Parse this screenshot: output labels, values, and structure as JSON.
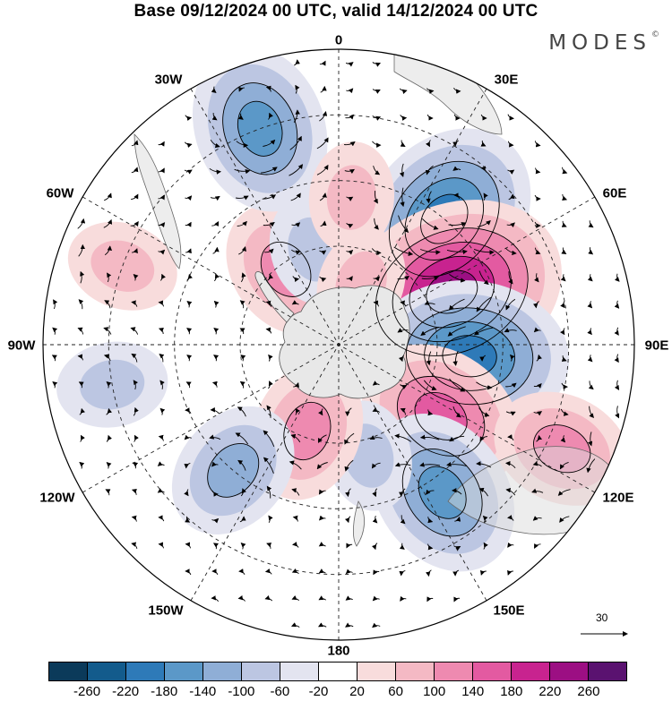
{
  "title": "Base 09/12/2024 00 UTC, valid 14/12/2024 00 UTC",
  "brand": "MODES",
  "brand_mark": "©",
  "longitude_labels": {
    "lon_0": "0",
    "lon_30e": "30E",
    "lon_60e": "60E",
    "lon_90e": "90E",
    "lon_120e": "120E",
    "lon_150e": "150E",
    "lon_180": "180",
    "lon_150w": "150W",
    "lon_120w": "120W",
    "lon_90w": "90W",
    "lon_60w": "60W",
    "lon_30w": "30W"
  },
  "reference_vector_label": "30",
  "colorbar": {
    "colors": [
      "#0b3a5a",
      "#135b8c",
      "#2e7ab8",
      "#5b98c8",
      "#8faed6",
      "#bcc6e2",
      "#e3e4f0",
      "#ffffff",
      "#f8dcdc",
      "#f4b9c4",
      "#ee8ab0",
      "#e35aa1",
      "#c8238f",
      "#9c0f83",
      "#5a1270"
    ],
    "ticks": [
      "-260",
      "-220",
      "-180",
      "-140",
      "-100",
      "-60",
      "-20",
      "20",
      "60",
      "100",
      "140",
      "180",
      "220",
      "260"
    ]
  },
  "anomaly_centers": [
    {
      "lon": 40,
      "colat": 50,
      "value": -180
    },
    {
      "lon": 65,
      "colat": 38,
      "value": 220
    },
    {
      "lon": 95,
      "colat": 40,
      "value": -200
    },
    {
      "lon": 125,
      "colat": 38,
      "value": 150
    },
    {
      "lon": 145,
      "colat": 55,
      "value": -140
    },
    {
      "lon": 165,
      "colat": 35,
      "value": -80
    },
    {
      "lon": -160,
      "colat": 28,
      "value": 110
    },
    {
      "lon": -140,
      "colat": 50,
      "value": -120
    },
    {
      "lon": -35,
      "colat": 28,
      "value": 120
    },
    {
      "lon": -15,
      "colat": 30,
      "value": -80
    },
    {
      "lon": -20,
      "colat": 70,
      "value": -140
    },
    {
      "lon": 5,
      "colat": 45,
      "value": 80
    },
    {
      "lon": 20,
      "colat": 20,
      "value": 60
    },
    {
      "lon": -70,
      "colat": 70,
      "value": 60
    },
    {
      "lon": -100,
      "colat": 70,
      "value": -60
    },
    {
      "lon": 115,
      "colat": 75,
      "value": 100
    }
  ]
}
